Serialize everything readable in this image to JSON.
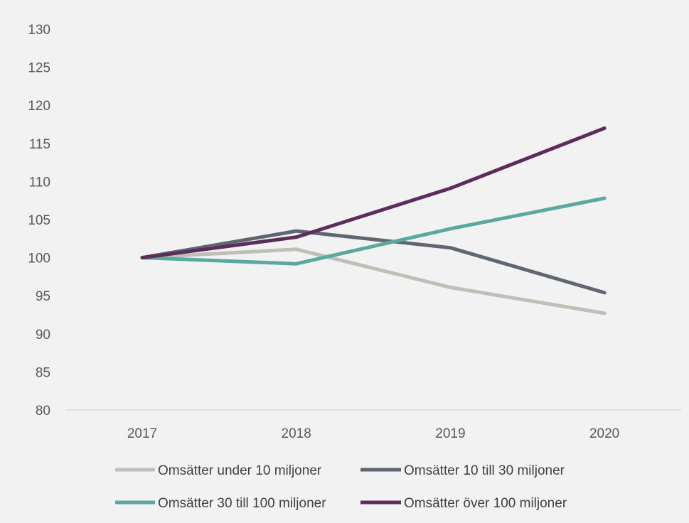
{
  "chart_data": {
    "type": "line",
    "title": "",
    "xlabel": "",
    "ylabel": "",
    "categories": [
      "2017",
      "2018",
      "2019",
      "2020"
    ],
    "ylim": [
      80,
      130
    ],
    "yticks": [
      80,
      85,
      90,
      95,
      100,
      105,
      110,
      115,
      120,
      125,
      130
    ],
    "grid": false,
    "legend": "bottom",
    "series": [
      {
        "name": "Omsätter under 10 miljoner",
        "color": "#bfbfb8",
        "values": [
          100,
          101.1,
          96.1,
          92.7
        ]
      },
      {
        "name": "Omsätter 10 till 30 miljoner",
        "color": "#5f6670",
        "values": [
          100,
          103.5,
          101.3,
          95.4
        ]
      },
      {
        "name": "Omsätter 30 till 100 miljoner",
        "color": "#5ba89f",
        "values": [
          100,
          99.2,
          103.8,
          107.8
        ]
      },
      {
        "name": "Omsätter över 100 miljoner",
        "color": "#5c2d5a",
        "values": [
          100,
          102.7,
          109.1,
          117.0
        ]
      }
    ]
  }
}
